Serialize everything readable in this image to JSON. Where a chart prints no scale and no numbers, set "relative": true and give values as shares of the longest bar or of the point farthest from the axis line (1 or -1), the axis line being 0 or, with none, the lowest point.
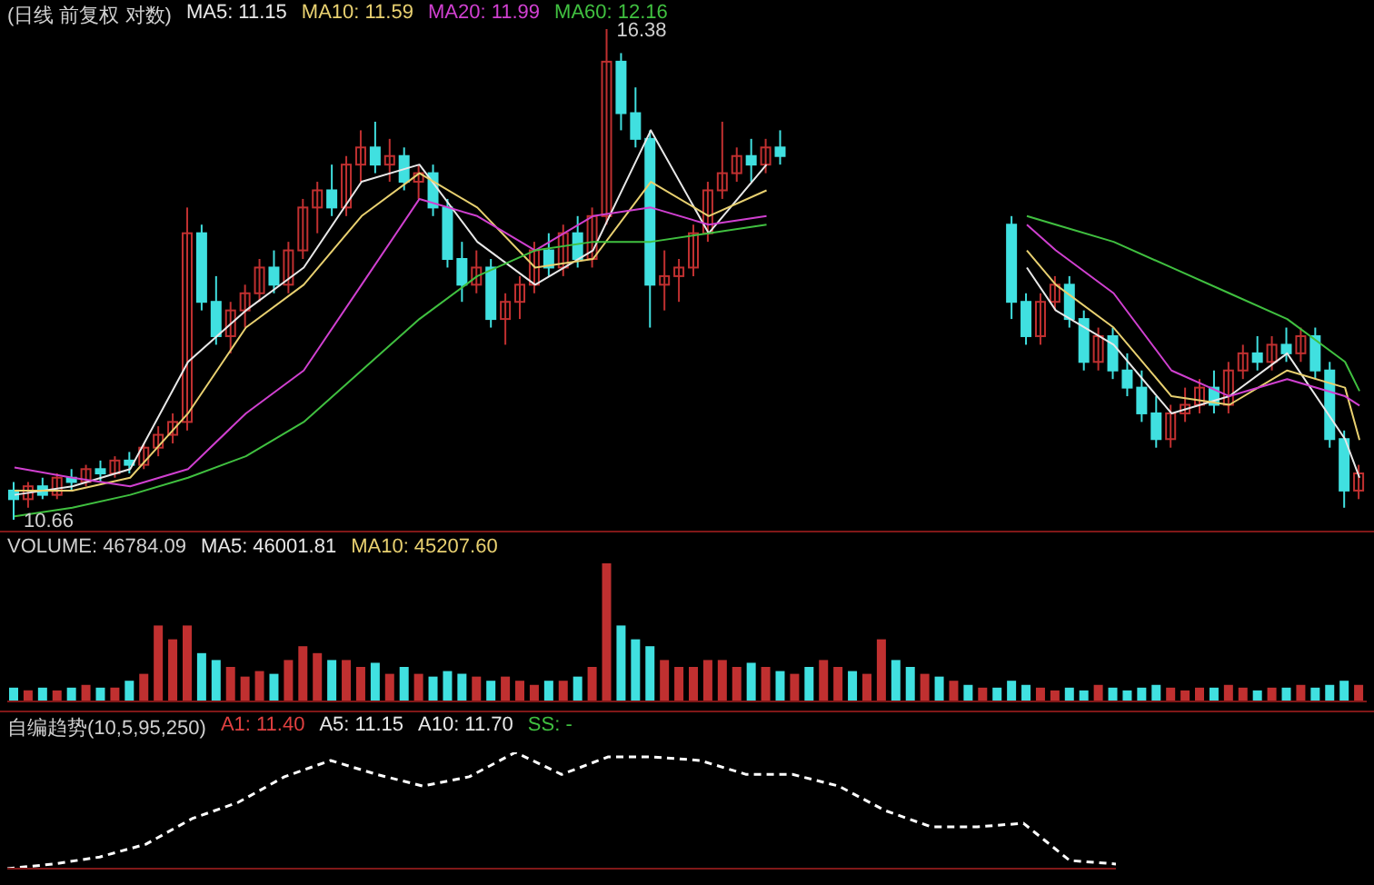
{
  "chart_data": [
    {
      "type": "candlestick",
      "title": "(日线 前复权 对数)",
      "legend": "top left",
      "categories": [
        null,
        null,
        null,
        null,
        null,
        null,
        null,
        null,
        null,
        null,
        null,
        null,
        null,
        null,
        null,
        null,
        null,
        null,
        null,
        null,
        null,
        null,
        null,
        null,
        null,
        null,
        null,
        null,
        null,
        null,
        null,
        null,
        null,
        null,
        null,
        null,
        null,
        null,
        null,
        null,
        null,
        null,
        null,
        null,
        null,
        null,
        null,
        null,
        null,
        null,
        null,
        null,
        null,
        null,
        null,
        null,
        null,
        null,
        null,
        null,
        null,
        null,
        null,
        null,
        null,
        null,
        null,
        null,
        null,
        null,
        null,
        null,
        null,
        null,
        null,
        null,
        null,
        null,
        null,
        null,
        null,
        null,
        null,
        null,
        null,
        null,
        null,
        null,
        null,
        null,
        null,
        null,
        null,
        null
      ],
      "ohlc": [
        [
          11.0,
          11.1,
          10.66,
          10.9
        ],
        [
          10.9,
          11.1,
          10.8,
          11.05
        ],
        [
          11.05,
          11.15,
          10.9,
          10.95
        ],
        [
          10.95,
          11.2,
          10.9,
          11.15
        ],
        [
          11.15,
          11.25,
          11.0,
          11.1
        ],
        [
          11.1,
          11.3,
          11.05,
          11.25
        ],
        [
          11.25,
          11.35,
          11.1,
          11.2
        ],
        [
          11.2,
          11.4,
          11.15,
          11.35
        ],
        [
          11.35,
          11.45,
          11.2,
          11.3
        ],
        [
          11.3,
          11.55,
          11.25,
          11.5
        ],
        [
          11.5,
          11.75,
          11.4,
          11.65
        ],
        [
          11.65,
          11.9,
          11.55,
          11.8
        ],
        [
          11.8,
          14.3,
          11.7,
          14.0
        ],
        [
          14.0,
          14.1,
          13.1,
          13.2
        ],
        [
          13.2,
          13.5,
          12.7,
          12.8
        ],
        [
          12.8,
          13.2,
          12.6,
          13.1
        ],
        [
          13.1,
          13.4,
          12.9,
          13.3
        ],
        [
          13.3,
          13.7,
          13.2,
          13.6
        ],
        [
          13.6,
          13.8,
          13.3,
          13.4
        ],
        [
          13.4,
          13.9,
          13.3,
          13.8
        ],
        [
          13.8,
          14.4,
          13.7,
          14.3
        ],
        [
          14.3,
          14.6,
          14.0,
          14.5
        ],
        [
          14.5,
          14.8,
          14.2,
          14.3
        ],
        [
          14.3,
          14.9,
          14.2,
          14.8
        ],
        [
          14.8,
          15.2,
          14.6,
          15.0
        ],
        [
          15.0,
          15.3,
          14.7,
          14.8
        ],
        [
          14.8,
          15.1,
          14.6,
          14.9
        ],
        [
          14.9,
          15.0,
          14.5,
          14.6
        ],
        [
          14.6,
          14.8,
          14.4,
          14.7
        ],
        [
          14.7,
          14.8,
          14.2,
          14.3
        ],
        [
          14.3,
          14.4,
          13.6,
          13.7
        ],
        [
          13.7,
          13.9,
          13.2,
          13.4
        ],
        [
          13.4,
          13.8,
          13.3,
          13.6
        ],
        [
          13.6,
          13.7,
          12.9,
          13.0
        ],
        [
          13.0,
          13.3,
          12.7,
          13.2
        ],
        [
          13.2,
          13.5,
          13.0,
          13.4
        ],
        [
          13.4,
          13.9,
          13.3,
          13.8
        ],
        [
          13.8,
          14.0,
          13.5,
          13.6
        ],
        [
          13.6,
          14.1,
          13.5,
          14.0
        ],
        [
          14.0,
          14.2,
          13.6,
          13.7
        ],
        [
          13.7,
          14.3,
          13.6,
          14.2
        ],
        [
          14.2,
          16.38,
          14.1,
          16.0
        ],
        [
          16.0,
          16.1,
          15.2,
          15.4
        ],
        [
          15.4,
          15.7,
          15.0,
          15.1
        ],
        [
          15.1,
          15.2,
          12.9,
          13.4
        ],
        [
          13.4,
          13.8,
          13.1,
          13.5
        ],
        [
          13.5,
          13.7,
          13.2,
          13.6
        ],
        [
          13.6,
          14.1,
          13.5,
          14.0
        ],
        [
          14.0,
          14.6,
          13.9,
          14.5
        ],
        [
          14.5,
          15.3,
          14.4,
          14.7
        ],
        [
          14.7,
          15.0,
          14.6,
          14.9
        ],
        [
          14.9,
          15.1,
          14.6,
          14.8
        ],
        [
          14.8,
          15.1,
          14.7,
          15.0
        ],
        [
          15.0,
          15.2,
          14.8,
          14.9
        ],
        null,
        null,
        null,
        null,
        null,
        null,
        null,
        null,
        null,
        null,
        null,
        null,
        null,
        null,
        null,
        [
          14.1,
          14.2,
          13.0,
          13.2
        ],
        [
          13.2,
          13.3,
          12.7,
          12.8
        ],
        [
          12.8,
          13.3,
          12.7,
          13.2
        ],
        [
          13.2,
          13.5,
          13.1,
          13.4
        ],
        [
          13.4,
          13.5,
          12.9,
          13.0
        ],
        [
          13.0,
          13.1,
          12.4,
          12.5
        ],
        [
          12.5,
          12.9,
          12.4,
          12.8
        ],
        [
          12.8,
          12.9,
          12.3,
          12.4
        ],
        [
          12.4,
          12.6,
          12.1,
          12.2
        ],
        [
          12.2,
          12.4,
          11.8,
          11.9
        ],
        [
          11.9,
          12.1,
          11.5,
          11.6
        ],
        [
          11.6,
          12.0,
          11.5,
          11.9
        ],
        [
          11.9,
          12.2,
          11.8,
          12.0
        ],
        [
          12.0,
          12.3,
          11.9,
          12.2
        ],
        [
          12.2,
          12.4,
          11.9,
          12.0
        ],
        [
          12.0,
          12.5,
          11.9,
          12.4
        ],
        [
          12.4,
          12.7,
          12.3,
          12.6
        ],
        [
          12.6,
          12.8,
          12.4,
          12.5
        ],
        [
          12.5,
          12.8,
          12.4,
          12.7
        ],
        [
          12.7,
          12.9,
          12.5,
          12.6
        ],
        [
          12.6,
          12.9,
          12.5,
          12.8
        ],
        [
          12.8,
          12.9,
          12.3,
          12.4
        ],
        [
          12.4,
          12.5,
          11.5,
          11.6
        ],
        [
          11.6,
          11.7,
          10.8,
          11.0
        ],
        [
          11.0,
          11.3,
          10.9,
          11.2
        ]
      ],
      "series": [
        {
          "name": "MA5: 11.15",
          "type": "line",
          "color": "#e8e8e8",
          "values": [
            10.95,
            null,
            null,
            null,
            11.05,
            null,
            null,
            null,
            11.25,
            null,
            null,
            null,
            12.5,
            null,
            null,
            null,
            13.1,
            null,
            null,
            null,
            13.6,
            null,
            null,
            null,
            14.6,
            null,
            null,
            null,
            14.8,
            null,
            null,
            null,
            13.9,
            null,
            null,
            null,
            13.4,
            null,
            null,
            null,
            13.8,
            null,
            null,
            null,
            15.2,
            null,
            null,
            null,
            14.0,
            null,
            null,
            null,
            14.8,
            null,
            null,
            null,
            null,
            null,
            null,
            null,
            null,
            null,
            null,
            null,
            null,
            null,
            null,
            null,
            null,
            null,
            13.6,
            null,
            13.1,
            null,
            null,
            null,
            12.7,
            null,
            null,
            null,
            11.9,
            null,
            null,
            null,
            12.1,
            null,
            null,
            null,
            12.6,
            null,
            null,
            null,
            11.6,
            11.15
          ]
        },
        {
          "name": "MA10: 11.59",
          "type": "line",
          "color": "#e8d070",
          "values": [
            11.0,
            null,
            null,
            null,
            11.0,
            null,
            null,
            null,
            11.15,
            null,
            null,
            null,
            11.9,
            null,
            null,
            null,
            12.9,
            null,
            null,
            null,
            13.4,
            null,
            null,
            null,
            14.2,
            null,
            null,
            null,
            14.7,
            null,
            null,
            null,
            14.3,
            null,
            null,
            null,
            13.6,
            null,
            null,
            null,
            13.7,
            null,
            null,
            null,
            14.6,
            null,
            null,
            null,
            14.2,
            null,
            null,
            null,
            14.5,
            null,
            null,
            null,
            null,
            null,
            null,
            null,
            null,
            null,
            null,
            null,
            null,
            null,
            null,
            null,
            null,
            null,
            13.8,
            null,
            13.4,
            null,
            null,
            null,
            12.9,
            null,
            null,
            null,
            12.1,
            null,
            null,
            null,
            12.0,
            null,
            null,
            null,
            12.4,
            null,
            null,
            null,
            12.2,
            11.59
          ]
        },
        {
          "name": "MA20: 11.99",
          "type": "line",
          "color": "#d040d0",
          "values": [
            11.27,
            null,
            null,
            null,
            11.15,
            null,
            null,
            null,
            11.05,
            null,
            null,
            null,
            11.25,
            null,
            null,
            null,
            11.9,
            null,
            null,
            null,
            12.4,
            null,
            null,
            null,
            13.4,
            null,
            null,
            null,
            14.4,
            null,
            null,
            null,
            14.2,
            null,
            null,
            null,
            13.8,
            null,
            null,
            null,
            14.2,
            null,
            null,
            null,
            14.3,
            null,
            null,
            null,
            14.1,
            null,
            null,
            null,
            14.2,
            null,
            null,
            null,
            null,
            null,
            null,
            null,
            null,
            null,
            null,
            null,
            null,
            null,
            null,
            null,
            null,
            null,
            14.1,
            null,
            13.8,
            null,
            null,
            null,
            13.3,
            null,
            null,
            null,
            12.4,
            null,
            null,
            null,
            12.1,
            null,
            null,
            null,
            12.3,
            null,
            null,
            null,
            12.1,
            11.99
          ]
        },
        {
          "name": "MA60: 12.16",
          "type": "line",
          "color": "#40c040",
          "values": [
            10.7,
            null,
            null,
            null,
            10.8,
            null,
            null,
            null,
            10.95,
            null,
            null,
            null,
            11.15,
            null,
            null,
            null,
            11.4,
            null,
            null,
            null,
            11.8,
            null,
            null,
            null,
            12.4,
            null,
            null,
            null,
            13.0,
            null,
            null,
            null,
            13.5,
            null,
            null,
            null,
            13.8,
            null,
            null,
            null,
            13.9,
            null,
            null,
            null,
            13.9,
            null,
            null,
            null,
            14.0,
            null,
            null,
            null,
            14.1,
            null,
            null,
            null,
            null,
            null,
            null,
            null,
            null,
            null,
            null,
            null,
            null,
            null,
            null,
            null,
            null,
            null,
            14.2,
            null,
            14.1,
            null,
            null,
            null,
            13.9,
            null,
            null,
            null,
            13.6,
            null,
            null,
            null,
            13.3,
            null,
            null,
            null,
            13.0,
            null,
            null,
            null,
            12.5,
            12.16
          ]
        }
      ],
      "annotations": [
        "16.38",
        "10.66"
      ]
    },
    {
      "type": "bar",
      "title": "VOLUME: 46784.09",
      "relative": true,
      "annotations": [
        "MA5: 46001.81",
        "MA10: 45207.60"
      ],
      "categories": [
        null,
        null,
        null,
        null,
        null,
        null,
        null,
        null,
        null,
        null,
        null,
        null,
        null,
        null,
        null,
        null,
        null,
        null,
        null,
        null,
        null,
        null,
        null,
        null,
        null,
        null,
        null,
        null,
        null,
        null,
        null,
        null,
        null,
        null,
        null,
        null,
        null,
        null,
        null,
        null,
        null,
        null,
        null,
        null,
        null,
        null,
        null,
        null,
        null,
        null,
        null,
        null,
        null,
        null,
        null,
        null,
        null,
        null,
        null,
        null,
        null,
        null,
        null,
        null,
        null,
        null,
        null,
        null,
        null,
        null,
        null,
        null,
        null,
        null,
        null,
        null,
        null,
        null,
        null,
        null,
        null,
        null,
        null,
        null,
        null,
        null,
        null,
        null,
        null,
        null,
        null,
        null,
        null,
        null
      ],
      "values": [
        0.1,
        0.08,
        0.1,
        0.08,
        0.1,
        0.12,
        0.1,
        0.1,
        0.15,
        0.2,
        0.55,
        0.45,
        0.55,
        0.35,
        0.3,
        0.25,
        0.18,
        0.22,
        0.2,
        0.3,
        0.4,
        0.35,
        0.3,
        0.3,
        0.25,
        0.28,
        0.2,
        0.25,
        0.2,
        0.18,
        0.22,
        0.2,
        0.18,
        0.15,
        0.18,
        0.15,
        0.12,
        0.15,
        0.15,
        0.18,
        0.25,
        1,
        0.55,
        0.45,
        0.4,
        0.3,
        0.25,
        0.25,
        0.3,
        0.3,
        0.25,
        0.28,
        0.25,
        0.22,
        0.2,
        0.25,
        0.3,
        0.25,
        0.22,
        0.2,
        0.45,
        0.3,
        0.25,
        0.2,
        0.18,
        0.15,
        0.12,
        0.1,
        0.1,
        0.15,
        0.12,
        0.1,
        0.08,
        0.1,
        0.08,
        0.12,
        0.1,
        0.08,
        0.1,
        0.12,
        0.1,
        0.08,
        0.1,
        0.1,
        0.12,
        0.1,
        0.08,
        0.1,
        0.1,
        0.12,
        0.1,
        0.12,
        0.15,
        0.12
      ],
      "colors": [
        "#40e0e0",
        "#c03030",
        "#40e0e0",
        "#c03030",
        "#40e0e0",
        "#c03030",
        "#40e0e0",
        "#c03030",
        "#40e0e0",
        "#c03030",
        "#c03030",
        "#c03030",
        "#c03030",
        "#40e0e0",
        "#40e0e0",
        "#c03030",
        "#c03030",
        "#c03030",
        "#40e0e0",
        "#c03030",
        "#c03030",
        "#c03030",
        "#40e0e0",
        "#c03030",
        "#c03030",
        "#40e0e0",
        "#c03030",
        "#40e0e0",
        "#c03030",
        "#40e0e0",
        "#40e0e0",
        "#40e0e0",
        "#c03030",
        "#40e0e0",
        "#c03030",
        "#c03030",
        "#c03030",
        "#40e0e0",
        "#c03030",
        "#40e0e0",
        "#c03030",
        "#c03030",
        "#40e0e0",
        "#40e0e0",
        "#40e0e0",
        "#c03030",
        "#c03030",
        "#c03030",
        "#c03030",
        "#c03030",
        "#c03030",
        "#40e0e0",
        "#c03030",
        "#40e0e0",
        "#c03030",
        "#40e0e0",
        "#c03030",
        "#c03030",
        "#40e0e0",
        "#c03030",
        "#c03030",
        "#40e0e0",
        "#40e0e0",
        "#c03030",
        "#40e0e0",
        "#c03030",
        "#40e0e0",
        "#c03030",
        "#40e0e0",
        "#40e0e0",
        "#40e0e0",
        "#c03030",
        "#c03030",
        "#40e0e0",
        "#40e0e0",
        "#c03030",
        "#40e0e0",
        "#40e0e0",
        "#40e0e0",
        "#40e0e0",
        "#c03030",
        "#c03030",
        "#c03030",
        "#40e0e0",
        "#c03030",
        "#c03030",
        "#40e0e0",
        "#c03030",
        "#40e0e0",
        "#c03030",
        "#40e0e0",
        "#40e0e0",
        "#40e0e0",
        "#c03030"
      ]
    },
    {
      "type": "line",
      "title": "自编趋势(10,5,95,250)",
      "relative": true,
      "line_style": "dashed",
      "annotations": [
        "A1: 11.40",
        "A5: 11.15",
        "A10: 11.70",
        "SS: -"
      ],
      "categories": [
        null,
        null,
        null,
        null,
        null,
        null,
        null,
        null,
        null,
        null,
        null,
        null,
        null,
        null,
        null,
        null,
        null,
        null,
        null,
        null,
        null,
        null,
        null,
        null,
        null
      ],
      "series": [
        {
          "color": "#ffffff",
          "values": [
            0,
            0.04,
            0.1,
            0.21,
            0.43,
            0.57,
            0.79,
            0.93,
            0.81,
            0.71,
            0.79,
            1,
            0.81,
            0.96,
            0.96,
            0.93,
            0.81,
            0.81,
            0.71,
            0.5,
            0.36,
            0.36,
            0.39,
            0.07,
            0.04
          ]
        }
      ]
    }
  ]
}
